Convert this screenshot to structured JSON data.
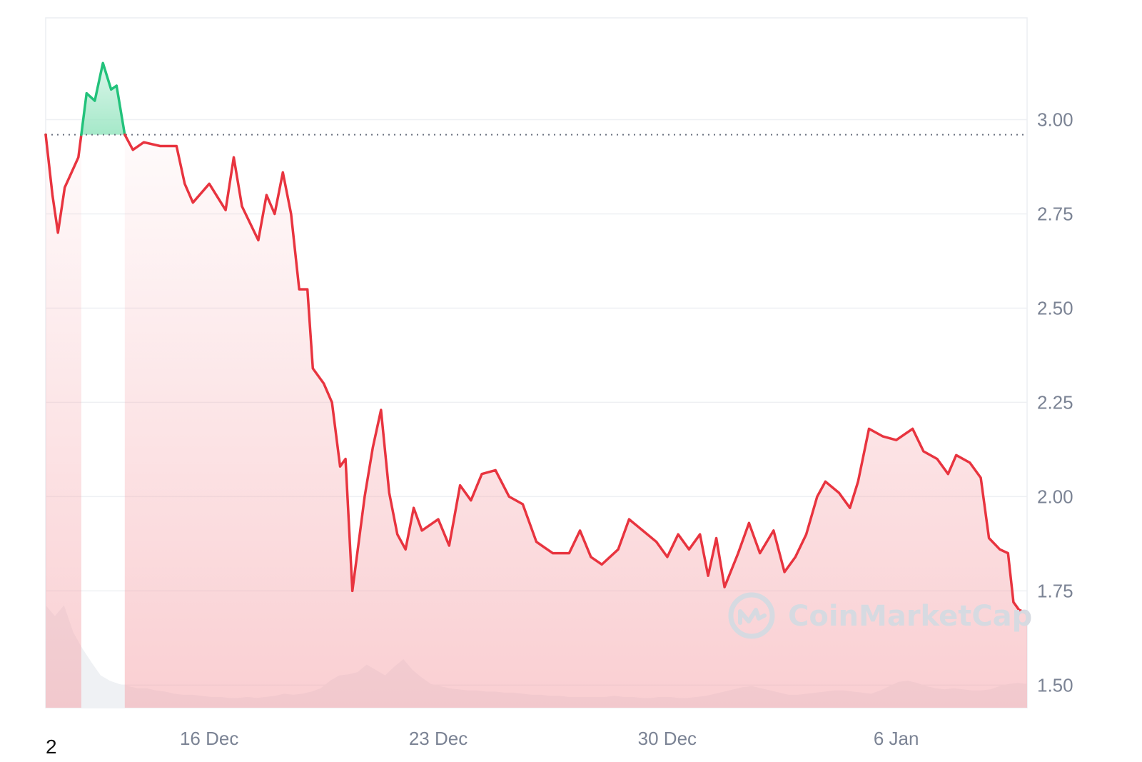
{
  "chart_data": {
    "type": "area",
    "title": "",
    "xlabel": "",
    "ylabel": "",
    "x_range": [
      "2024-12-11",
      "2025-01-09"
    ],
    "ylim": [
      1.44,
      3.27
    ],
    "y_ticks": [
      "3.00",
      "2.75",
      "2.50",
      "2.25",
      "2.00",
      "1.75",
      "1.50"
    ],
    "x_ticks": [
      {
        "label": "16 Dec",
        "date": "2024-12-16"
      },
      {
        "label": "23 Dec",
        "date": "2024-12-23"
      },
      {
        "label": "30 Dec",
        "date": "2024-12-30"
      },
      {
        "label": "6 Jan",
        "date": "2025-01-06"
      }
    ],
    "baseline": 2.96,
    "grid": true,
    "series": [
      {
        "points": [
          [
            "2024-12-11 00:00",
            2.96
          ],
          [
            "2024-12-11 05:00",
            2.8
          ],
          [
            "2024-12-11 09:00",
            2.7
          ],
          [
            "2024-12-11 14:00",
            2.82
          ],
          [
            "2024-12-11 19:00",
            2.86
          ],
          [
            "2024-12-12 00:00",
            2.9
          ],
          [
            "2024-12-12 06:00",
            3.07
          ],
          [
            "2024-12-12 12:00",
            3.05
          ],
          [
            "2024-12-12 18:00",
            3.15
          ],
          [
            "2024-12-13 00:00",
            3.08
          ],
          [
            "2024-12-13 04:00",
            3.09
          ],
          [
            "2024-12-13 10:00",
            2.96
          ],
          [
            "2024-12-13 16:00",
            2.92
          ],
          [
            "2024-12-14 00:00",
            2.94
          ],
          [
            "2024-12-14 12:00",
            2.93
          ],
          [
            "2024-12-15 00:00",
            2.93
          ],
          [
            "2024-12-15 06:00",
            2.83
          ],
          [
            "2024-12-15 12:00",
            2.78
          ],
          [
            "2024-12-16 00:00",
            2.83
          ],
          [
            "2024-12-16 12:00",
            2.76
          ],
          [
            "2024-12-16 18:00",
            2.9
          ],
          [
            "2024-12-17 00:00",
            2.77
          ],
          [
            "2024-12-17 12:00",
            2.68
          ],
          [
            "2024-12-17 18:00",
            2.8
          ],
          [
            "2024-12-18 00:00",
            2.75
          ],
          [
            "2024-12-18 06:00",
            2.86
          ],
          [
            "2024-12-18 12:00",
            2.75
          ],
          [
            "2024-12-18 18:00",
            2.55
          ],
          [
            "2024-12-19 00:00",
            2.55
          ],
          [
            "2024-12-19 04:00",
            2.34
          ],
          [
            "2024-12-19 12:00",
            2.3
          ],
          [
            "2024-12-19 18:00",
            2.25
          ],
          [
            "2024-12-20 00:00",
            2.08
          ],
          [
            "2024-12-20 04:00",
            2.1
          ],
          [
            "2024-12-20 09:00",
            1.75
          ],
          [
            "2024-12-20 18:00",
            2.0
          ],
          [
            "2024-12-21 00:00",
            2.13
          ],
          [
            "2024-12-21 06:00",
            2.23
          ],
          [
            "2024-12-21 12:00",
            2.01
          ],
          [
            "2024-12-21 18:00",
            1.9
          ],
          [
            "2024-12-22 00:00",
            1.86
          ],
          [
            "2024-12-22 06:00",
            1.97
          ],
          [
            "2024-12-22 12:00",
            1.91
          ],
          [
            "2024-12-23 00:00",
            1.94
          ],
          [
            "2024-12-23 08:00",
            1.87
          ],
          [
            "2024-12-23 16:00",
            2.03
          ],
          [
            "2024-12-24 00:00",
            1.99
          ],
          [
            "2024-12-24 08:00",
            2.06
          ],
          [
            "2024-12-24 18:00",
            2.07
          ],
          [
            "2024-12-25 04:00",
            2.0
          ],
          [
            "2024-12-25 14:00",
            1.98
          ],
          [
            "2024-12-26 00:00",
            1.88
          ],
          [
            "2024-12-26 12:00",
            1.85
          ],
          [
            "2024-12-27 00:00",
            1.85
          ],
          [
            "2024-12-27 08:00",
            1.91
          ],
          [
            "2024-12-27 16:00",
            1.84
          ],
          [
            "2024-12-28 00:00",
            1.82
          ],
          [
            "2024-12-28 12:00",
            1.86
          ],
          [
            "2024-12-28 20:00",
            1.94
          ],
          [
            "2024-12-29 06:00",
            1.91
          ],
          [
            "2024-12-29 16:00",
            1.88
          ],
          [
            "2024-12-30 00:00",
            1.84
          ],
          [
            "2024-12-30 08:00",
            1.9
          ],
          [
            "2024-12-30 16:00",
            1.86
          ],
          [
            "2024-12-31 00:00",
            1.9
          ],
          [
            "2024-12-31 06:00",
            1.79
          ],
          [
            "2024-12-31 12:00",
            1.89
          ],
          [
            "2024-12-31 18:00",
            1.76
          ],
          [
            "2025-01-01 04:00",
            1.85
          ],
          [
            "2025-01-01 12:00",
            1.93
          ],
          [
            "2025-01-01 20:00",
            1.85
          ],
          [
            "2025-01-02 06:00",
            1.91
          ],
          [
            "2025-01-02 14:00",
            1.8
          ],
          [
            "2025-01-02 22:00",
            1.84
          ],
          [
            "2025-01-03 06:00",
            1.9
          ],
          [
            "2025-01-03 14:00",
            2.0
          ],
          [
            "2025-01-03 20:00",
            2.04
          ],
          [
            "2025-01-04 06:00",
            2.01
          ],
          [
            "2025-01-04 14:00",
            1.97
          ],
          [
            "2025-01-04 20:00",
            2.04
          ],
          [
            "2025-01-05 04:00",
            2.18
          ],
          [
            "2025-01-05 14:00",
            2.16
          ],
          [
            "2025-01-06 00:00",
            2.15
          ],
          [
            "2025-01-06 12:00",
            2.18
          ],
          [
            "2025-01-06 20:00",
            2.12
          ],
          [
            "2025-01-07 06:00",
            2.1
          ],
          [
            "2025-01-07 14:00",
            2.06
          ],
          [
            "2025-01-07 20:00",
            2.11
          ],
          [
            "2025-01-08 06:00",
            2.09
          ],
          [
            "2025-01-08 14:00",
            2.05
          ],
          [
            "2025-01-08 20:00",
            1.89
          ],
          [
            "2025-01-09 04:00",
            1.86
          ],
          [
            "2025-01-09 10:00",
            1.85
          ],
          [
            "2025-01-09 14:00",
            1.72
          ],
          [
            "2025-01-09 18:00",
            1.7
          ],
          [
            "2025-01-09 23:59",
            1.69
          ]
        ]
      }
    ],
    "volume": [
      0.95,
      0.85,
      0.95,
      0.7,
      0.55,
      0.42,
      0.3,
      0.25,
      0.22,
      0.2,
      0.18,
      0.18,
      0.16,
      0.15,
      0.13,
      0.12,
      0.12,
      0.11,
      0.1,
      0.1,
      0.09,
      0.09,
      0.1,
      0.09,
      0.1,
      0.11,
      0.13,
      0.12,
      0.13,
      0.15,
      0.18,
      0.25,
      0.3,
      0.31,
      0.33,
      0.4,
      0.35,
      0.3,
      0.38,
      0.45,
      0.35,
      0.28,
      0.22,
      0.2,
      0.18,
      0.17,
      0.16,
      0.16,
      0.15,
      0.15,
      0.14,
      0.14,
      0.13,
      0.12,
      0.12,
      0.11,
      0.11,
      0.1,
      0.1,
      0.1,
      0.1,
      0.1,
      0.11,
      0.1,
      0.1,
      0.09,
      0.09,
      0.1,
      0.1,
      0.09,
      0.09,
      0.1,
      0.11,
      0.13,
      0.15,
      0.17,
      0.19,
      0.2,
      0.18,
      0.16,
      0.14,
      0.12,
      0.12,
      0.13,
      0.14,
      0.15,
      0.16,
      0.16,
      0.15,
      0.14,
      0.13,
      0.16,
      0.2,
      0.24,
      0.25,
      0.23,
      0.2,
      0.18,
      0.17,
      0.18,
      0.17,
      0.16,
      0.16,
      0.17,
      0.2,
      0.22,
      0.23,
      0.22
    ],
    "colors": {
      "down_line": "#e8343f",
      "up_line": "#22c27b",
      "down_fill": "#f5a7ad",
      "up_fill": "#9be6c3",
      "grid": "#eef0f3",
      "baseline": "#6b7280",
      "volume": "#eff1f4"
    }
  },
  "watermark": {
    "text": "CoinMarketCap",
    "icon": "coinmarketcap-logo-icon"
  },
  "footnote": "2"
}
